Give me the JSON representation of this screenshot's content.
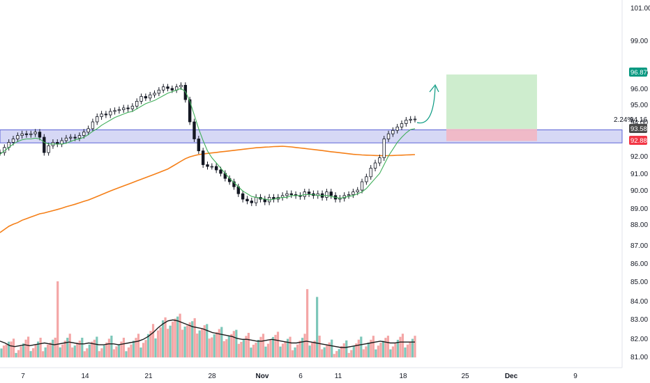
{
  "chart_data": {
    "type": "candlestick",
    "y_axis": {
      "position": "right",
      "ticks": [
        "101.00",
        "99.00",
        "97.00",
        "96.00",
        "95.00",
        "94.00",
        "92.00",
        "91.00",
        "90.00",
        "89.00",
        "88.00",
        "87.00",
        "86.00",
        "85.00",
        "84.00",
        "83.00",
        "82.00",
        "81.00"
      ],
      "ylim": [
        80.6,
        101.2
      ]
    },
    "x_axis": {
      "ticks": [
        "7",
        "14",
        "21",
        "28",
        "Nov",
        "6",
        "11",
        "18",
        "25",
        "Dec",
        "9"
      ]
    },
    "price_labels": {
      "last_price": {
        "text": "93.58",
        "value": 93.58,
        "color": "#4a4a4a"
      },
      "stop_price": {
        "text": "92.88",
        "value": 92.88,
        "color": "#f23645"
      },
      "target_price": {
        "text": "96.87",
        "value": 96.87,
        "color": "#089981"
      },
      "target_line": {
        "text": "94.16",
        "value": 94.16
      },
      "percent_label": "2.24%"
    },
    "support_zone": {
      "low": 92.85,
      "high": 93.45,
      "color": "#5b62d6"
    },
    "position": {
      "entry": 93.58,
      "target": 96.87,
      "stop": 92.88,
      "profit_color": "#c9ebc9",
      "loss_color": "#f3b7c3"
    },
    "price_series": [
      92.2,
      92.5,
      92.8,
      93.0,
      93.2,
      93.3,
      93.25,
      93.3,
      93.4,
      93.1,
      92.2,
      92.6,
      92.8,
      92.7,
      92.9,
      93.05,
      93.1,
      93.05,
      93.2,
      93.4,
      93.6,
      94.0,
      94.3,
      94.45,
      94.4,
      94.6,
      94.65,
      94.7,
      94.8,
      94.75,
      94.9,
      95.2,
      95.5,
      95.4,
      95.6,
      95.7,
      95.9,
      96.1,
      96.0,
      95.9,
      96.1,
      96.2,
      95.3,
      94.0,
      93.0,
      92.3,
      91.5,
      91.4,
      91.4,
      91.2,
      91.0,
      90.7,
      90.5,
      90.2,
      89.8,
      89.5,
      89.4,
      89.3,
      89.6,
      89.5,
      89.35,
      89.6,
      89.5,
      89.6,
      89.7,
      89.8,
      89.75,
      89.7,
      89.65,
      89.9,
      89.8,
      89.7,
      89.8,
      89.6,
      89.9,
      89.7,
      89.5,
      89.55,
      89.7,
      89.75,
      89.9,
      90.0,
      90.5,
      90.8,
      91.3,
      91.6,
      91.9,
      93.0,
      93.3,
      93.5,
      93.7,
      93.9,
      94.1,
      94.15,
      94.16
    ],
    "ma_fast": [
      92.1,
      92.3,
      92.5,
      92.7,
      92.85,
      92.95,
      93.0,
      93.0,
      93.05,
      93.0,
      92.8,
      92.7,
      92.7,
      92.7,
      92.7,
      92.75,
      92.85,
      92.95,
      93.0,
      93.1,
      93.25,
      93.45,
      93.6,
      93.8,
      93.95,
      94.1,
      94.25,
      94.35,
      94.45,
      94.55,
      94.6,
      94.75,
      94.9,
      95.05,
      95.15,
      95.25,
      95.4,
      95.55,
      95.7,
      95.8,
      95.9,
      96.0,
      95.8,
      95.2,
      94.4,
      93.6,
      92.9,
      92.3,
      91.9,
      91.6,
      91.3,
      91.0,
      90.7,
      90.45,
      90.2,
      89.95,
      89.8,
      89.65,
      89.6,
      89.55,
      89.5,
      89.45,
      89.5,
      89.55,
      89.6,
      89.6,
      89.7,
      89.7,
      89.7,
      89.75,
      89.75,
      89.75,
      89.7,
      89.7,
      89.7,
      89.65,
      89.6,
      89.55,
      89.6,
      89.65,
      89.7,
      89.8,
      89.9,
      90.1,
      90.4,
      90.7,
      91.0,
      91.5,
      92.0,
      92.4,
      92.8,
      93.1,
      93.35,
      93.55,
      93.6
    ],
    "ma_slow": [
      87.6,
      87.75,
      87.9,
      88.0,
      88.1,
      88.25,
      88.35,
      88.45,
      88.55,
      88.65,
      88.7,
      88.78,
      88.85,
      88.92,
      89.0,
      89.08,
      89.15,
      89.22,
      89.3,
      89.38,
      89.45,
      89.55,
      89.65,
      89.75,
      89.85,
      89.95,
      90.05,
      90.15,
      90.25,
      90.35,
      90.45,
      90.55,
      90.65,
      90.75,
      90.85,
      90.95,
      91.05,
      91.15,
      91.25,
      91.4,
      91.55,
      91.7,
      91.85,
      91.95,
      92.02,
      92.08,
      92.12,
      92.15,
      92.18,
      92.21,
      92.24,
      92.27,
      92.3,
      92.33,
      92.36,
      92.39,
      92.42,
      92.45,
      92.48,
      92.5,
      92.52,
      92.53,
      92.55,
      92.56,
      92.57,
      92.55,
      92.53,
      92.5,
      92.47,
      92.44,
      92.41,
      92.38,
      92.35,
      92.32,
      92.28,
      92.25,
      92.22,
      92.19,
      92.16,
      92.13,
      92.1,
      92.08,
      92.06,
      92.05,
      92.04,
      92.03,
      92.02,
      92.02,
      92.02,
      92.03,
      92.04,
      92.05,
      92.06,
      92.07,
      92.08
    ],
    "volume_ma": [
      81.85,
      81.75,
      81.6,
      81.55,
      81.6,
      81.65,
      81.6,
      81.65,
      81.7,
      81.75,
      81.7,
      81.65,
      81.7,
      81.75,
      81.8,
      81.75,
      81.7,
      81.7,
      81.75,
      81.7,
      81.65,
      81.65,
      81.7,
      81.7,
      81.65,
      81.7,
      81.75,
      81.8,
      81.85,
      81.95,
      82.1,
      82.3,
      82.55,
      82.75,
      82.9,
      82.95,
      82.9,
      82.8,
      82.7,
      82.6,
      82.55,
      82.5,
      82.4,
      82.3,
      82.25,
      82.2,
      82.15,
      82.1,
      82.0,
      81.95,
      81.95,
      81.9,
      81.85,
      81.85,
      81.9,
      81.95,
      81.9,
      81.85,
      81.8,
      81.75,
      81.75,
      81.8,
      81.85,
      81.8,
      81.75,
      81.7,
      81.65,
      81.6,
      81.55,
      81.5,
      81.5,
      81.55,
      81.6,
      81.65,
      81.7,
      81.75,
      81.8,
      81.85,
      81.8,
      81.75,
      81.75,
      81.8,
      81.8,
      81.8,
      81.8
    ]
  }
}
